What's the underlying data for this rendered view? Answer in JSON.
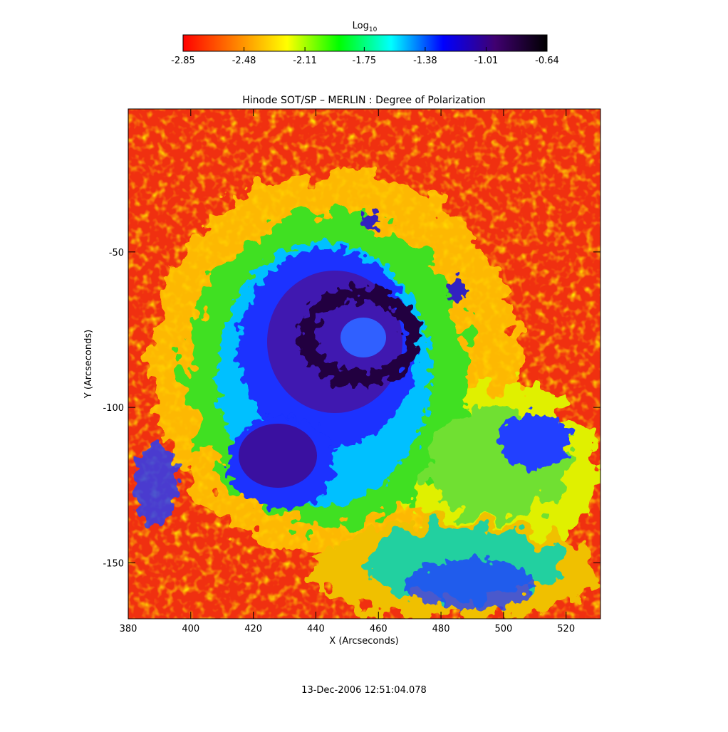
{
  "chart_data": {
    "type": "image",
    "title": "Hinode SOT/SP – MERLIN : Degree of Polarization",
    "x_label": "X (Arcseconds)",
    "y_label": "Y (Arcseconds)",
    "xlim": [
      380,
      531
    ],
    "xticks": [
      380,
      400,
      420,
      440,
      460,
      480,
      500,
      520
    ],
    "ylim": [
      -168,
      -4
    ],
    "yticks": [
      -50,
      -100,
      -150
    ],
    "colorbar": {
      "label": "Log",
      "label_subscript": "10",
      "lim": [
        -2.85,
        -0.64
      ],
      "ticks": [
        -2.85,
        -2.48,
        -2.11,
        -1.75,
        -1.38,
        -1.01,
        -0.64
      ],
      "colors": [
        "#ff0000",
        "#ff8000",
        "#ffff00",
        "#00ff00",
        "#00ffff",
        "#0000ff",
        "#400070",
        "#000000"
      ]
    },
    "footer": "13-Dec-2006 12:51:04.078"
  }
}
